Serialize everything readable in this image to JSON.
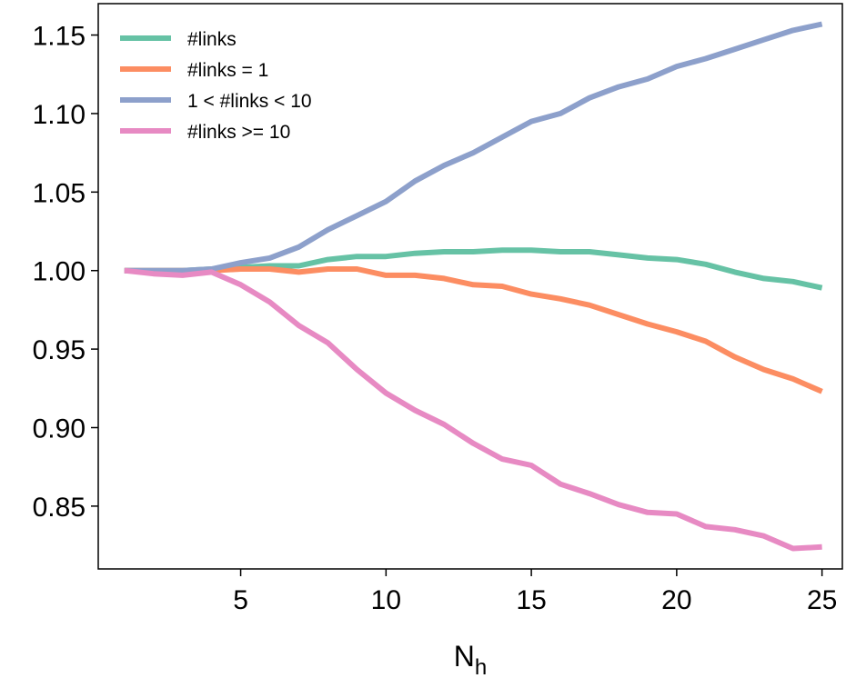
{
  "chart_data": {
    "type": "line",
    "x": [
      1,
      2,
      3,
      4,
      5,
      6,
      7,
      8,
      9,
      10,
      11,
      12,
      13,
      14,
      15,
      16,
      17,
      18,
      19,
      20,
      21,
      22,
      23,
      24,
      25
    ],
    "series": [
      {
        "name": "#links",
        "color": "#66c2a5",
        "values": [
          1.0,
          1.0,
          1.0,
          1.001,
          1.002,
          1.003,
          1.003,
          1.007,
          1.009,
          1.009,
          1.011,
          1.012,
          1.012,
          1.013,
          1.013,
          1.012,
          1.012,
          1.01,
          1.008,
          1.007,
          1.004,
          0.999,
          0.995,
          0.993,
          0.989
        ]
      },
      {
        "name": "#links = 1",
        "color": "#fc8d62",
        "values": [
          1.0,
          1.0,
          1.0,
          1.0,
          1.001,
          1.001,
          0.999,
          1.001,
          1.001,
          0.997,
          0.997,
          0.995,
          0.991,
          0.99,
          0.985,
          0.982,
          0.978,
          0.972,
          0.966,
          0.961,
          0.955,
          0.945,
          0.937,
          0.931,
          0.923
        ]
      },
      {
        "name": "1 < #links < 10",
        "color": "#8da0cb",
        "values": [
          1.0,
          1.0,
          1.0,
          1.001,
          1.005,
          1.008,
          1.015,
          1.026,
          1.035,
          1.044,
          1.057,
          1.067,
          1.075,
          1.085,
          1.095,
          1.1,
          1.11,
          1.117,
          1.122,
          1.13,
          1.135,
          1.141,
          1.147,
          1.153,
          1.157
        ]
      },
      {
        "name": "#links >= 10",
        "color": "#e78ac3",
        "values": [
          1.0,
          0.998,
          0.997,
          0.999,
          0.991,
          0.98,
          0.965,
          0.954,
          0.937,
          0.922,
          0.911,
          0.902,
          0.89,
          0.88,
          0.876,
          0.864,
          0.858,
          0.851,
          0.846,
          0.845,
          0.837,
          0.835,
          0.831,
          0.823,
          0.824
        ]
      }
    ],
    "xlabel": "N",
    "xlabel_sub": "h",
    "ylabel": "",
    "xlim": [
      0.1,
      25.7
    ],
    "ylim": [
      0.81,
      1.17
    ],
    "xticks": [
      5,
      10,
      15,
      20,
      25
    ],
    "xtick_labels": [
      "5",
      "10",
      "15",
      "20",
      "25"
    ],
    "yticks": [
      0.85,
      0.9,
      0.95,
      1.0,
      1.05,
      1.1,
      1.15
    ],
    "ytick_labels": [
      "0.85",
      "0.90",
      "0.95",
      "1.00",
      "1.05",
      "1.10",
      "1.15"
    ],
    "grid": false,
    "legend_position": "top-left"
  }
}
